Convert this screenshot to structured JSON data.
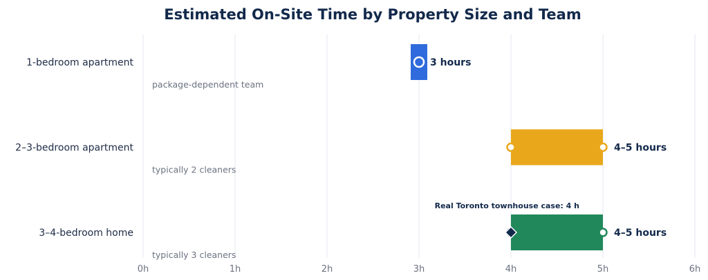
{
  "chart_data": {
    "type": "bar",
    "title": "Estimated On-Site Time by Property Size and Team",
    "xlabel": "",
    "ylabel": "",
    "xlim": [
      0,
      6
    ],
    "x_ticks": [
      0,
      1,
      2,
      3,
      4,
      5,
      6
    ],
    "x_tick_labels": [
      "0h",
      "1h",
      "2h",
      "3h",
      "4h",
      "5h",
      "6h"
    ],
    "grid": true,
    "categories": [
      "1-bedroom apartment",
      "2–3-bedroom apartment",
      "3–4-bedroom home"
    ],
    "series": [
      {
        "ranges": [
          [
            3,
            3
          ],
          [
            4,
            5
          ],
          [
            4,
            5
          ]
        ],
        "value_labels": [
          "3 hours",
          "4–5 hours",
          "4–5 hours"
        ],
        "notes": [
          "package-dependent team",
          "typically 2 cleaners",
          "typically 3 cleaners"
        ],
        "colors": [
          "#2f6bdc",
          "#e9a81c",
          "#20885a"
        ]
      }
    ],
    "annotation": {
      "text": "Real Toronto townhouse case: 4 h",
      "category": "3–4-bedroom home",
      "x": 4,
      "marker_color": "#13294b"
    }
  }
}
